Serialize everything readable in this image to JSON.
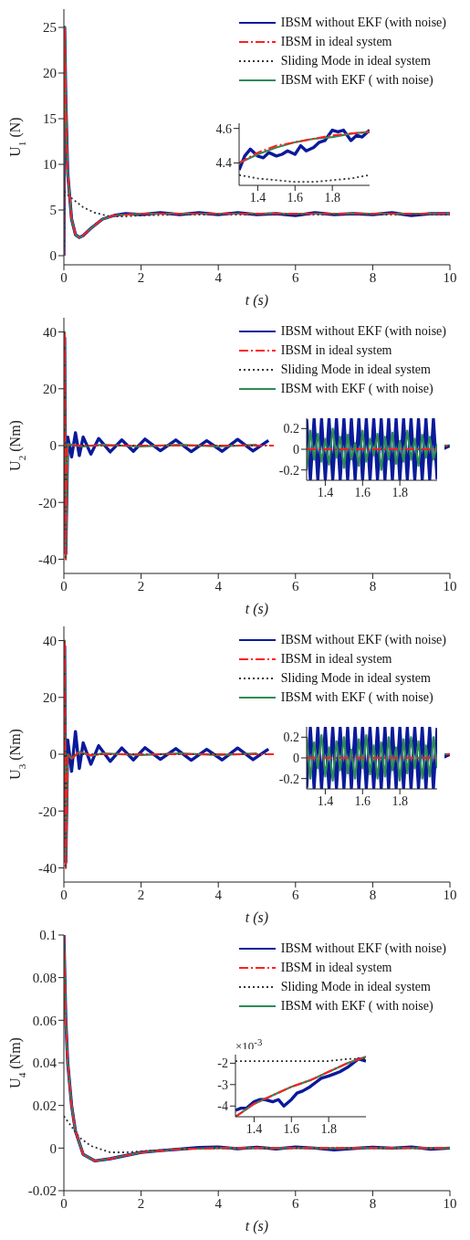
{
  "chart_data": [
    {
      "type": "line",
      "xlabel": "t (s)",
      "ylabel": "U$_{1}$ (N)",
      "xlim": [
        0,
        10
      ],
      "xticks": [
        0,
        2,
        4,
        6,
        8,
        10
      ],
      "ylim": [
        -1,
        27
      ],
      "yticks": [
        0,
        5,
        10,
        15,
        20,
        25
      ],
      "legend": "top right",
      "series": [
        {
          "name": "IBSM without EKF (with noise)",
          "color": "#0a1a9a",
          "line_style": "solid",
          "x": [
            0,
            0.02,
            0.05,
            0.1,
            0.2,
            0.3,
            0.4,
            0.5,
            0.7,
            1.0,
            1.3,
            1.6,
            2,
            2.5,
            3,
            3.5,
            4,
            4.5,
            5,
            5.5,
            6,
            6.5,
            7,
            7.5,
            8,
            8.5,
            9,
            9.5,
            10
          ],
          "values": [
            0,
            25,
            17,
            9,
            4,
            2.3,
            2,
            2.2,
            3,
            4,
            4.4,
            4.6,
            4.5,
            4.7,
            4.5,
            4.7,
            4.5,
            4.7,
            4.5,
            4.6,
            4.4,
            4.7,
            4.5,
            4.6,
            4.5,
            4.7,
            4.4,
            4.6,
            4.6
          ]
        },
        {
          "name": "IBSM in ideal system",
          "color": "#ff2020",
          "line_style": "dashed",
          "x": [
            0,
            0.02,
            0.05,
            0.1,
            0.2,
            0.3,
            0.4,
            0.5,
            0.7,
            1.0,
            1.3,
            1.6,
            2,
            3,
            4,
            6,
            8,
            10
          ],
          "values": [
            0,
            25,
            17,
            9,
            4,
            2.3,
            2,
            2.2,
            3,
            4,
            4.4,
            4.5,
            4.6,
            4.6,
            4.6,
            4.6,
            4.6,
            4.6
          ]
        },
        {
          "name": "Sliding Mode in ideal system",
          "color": "#333333",
          "line_style": "dotted",
          "x": [
            0,
            0.01,
            0.2,
            0.5,
            0.8,
            1.2,
            1.6,
            2,
            3,
            10
          ],
          "values": [
            0,
            7,
            6.3,
            5.3,
            4.7,
            4.3,
            4.3,
            4.4,
            4.5,
            4.5
          ]
        },
        {
          "name": "IBSM with EKF ( with noise)",
          "color": "#2e8b57",
          "line_style": "solid",
          "x": [
            0,
            0.02,
            0.05,
            0.1,
            0.2,
            0.3,
            0.4,
            0.5,
            0.7,
            1.0,
            1.3,
            1.6,
            2,
            3,
            4,
            6,
            8,
            10
          ],
          "values": [
            0,
            25,
            17,
            9,
            4,
            2.3,
            2,
            2.2,
            3,
            4,
            4.4,
            4.5,
            4.6,
            4.6,
            4.6,
            4.6,
            4.6,
            4.6
          ]
        }
      ]
    },
    {
      "type": "line",
      "xlim": [
        1.3,
        2.0
      ],
      "xticks": [
        1.4,
        1.6,
        1.8
      ],
      "ylim": [
        4.27,
        4.63
      ],
      "yticks": [
        4.4,
        4.6
      ],
      "series": [
        {
          "color": "#0a1a9a",
          "line_style": "solid",
          "x": [
            1.3,
            1.33,
            1.36,
            1.4,
            1.43,
            1.46,
            1.5,
            1.53,
            1.56,
            1.6,
            1.63,
            1.66,
            1.7,
            1.73,
            1.76,
            1.8,
            1.83,
            1.86,
            1.9,
            1.93,
            1.96,
            2.0
          ],
          "values": [
            4.36,
            4.44,
            4.48,
            4.44,
            4.43,
            4.46,
            4.44,
            4.45,
            4.47,
            4.45,
            4.5,
            4.47,
            4.49,
            4.52,
            4.53,
            4.59,
            4.58,
            4.59,
            4.53,
            4.56,
            4.55,
            4.59
          ]
        },
        {
          "color": "#ff2020",
          "line_style": "dashed",
          "x": [
            1.3,
            1.4,
            1.5,
            1.6,
            1.7,
            1.8,
            1.9,
            2.0
          ],
          "values": [
            4.4,
            4.46,
            4.5,
            4.52,
            4.54,
            4.56,
            4.57,
            4.58
          ]
        },
        {
          "color": "#333333",
          "line_style": "dotted",
          "x": [
            1.3,
            1.4,
            1.5,
            1.6,
            1.7,
            1.8,
            1.9,
            2.0
          ],
          "values": [
            4.33,
            4.31,
            4.3,
            4.29,
            4.29,
            4.3,
            4.31,
            4.33
          ]
        },
        {
          "color": "#2e8b57",
          "line_style": "solid",
          "x": [
            1.3,
            1.4,
            1.5,
            1.6,
            1.7,
            1.8,
            1.9,
            2.0
          ],
          "values": [
            4.4,
            4.45,
            4.49,
            4.52,
            4.54,
            4.55,
            4.57,
            4.58
          ]
        }
      ]
    },
    {
      "type": "line",
      "xlabel": "t (s)",
      "ylabel": "U$_{2}$ (Nm)",
      "xlim": [
        0,
        10
      ],
      "xticks": [
        0,
        2,
        4,
        6,
        8,
        10
      ],
      "ylim": [
        -45,
        45
      ],
      "yticks": [
        -40,
        -20,
        0,
        20,
        40
      ],
      "legend": "top right",
      "series": [
        {
          "name": "IBSM without EKF (with noise)",
          "color": "#0a1a9a",
          "line_style": "solid",
          "x": [
            0,
            0.02,
            0.05,
            0.1,
            0.2,
            0.3,
            0.4,
            0.5,
            0.7,
            0.9,
            1.2,
            1.5,
            1.8,
            2.1,
            2.5,
            2.9,
            3.3,
            3.7,
            4.1,
            4.5,
            4.9,
            5.3,
            5.7,
            6.1,
            6.5,
            6.9,
            7.3,
            7.7,
            8.1,
            8.5,
            8.9,
            9.3,
            9.7,
            10
          ],
          "values": [
            0,
            38,
            -38,
            3,
            -4,
            4.5,
            -3.5,
            3,
            -3,
            2.5,
            -2.2,
            2,
            -2,
            2.3,
            -1.8,
            2,
            -2.1,
            1.7,
            -2,
            2.2,
            -1.9,
            1.8,
            null,
            null,
            -1.7,
            2.1,
            -2,
            1.9,
            -2.2,
            1.8,
            -2,
            2,
            -1.9,
            0
          ]
        },
        {
          "name": "IBSM in ideal system",
          "color": "#ff2020",
          "line_style": "dashed",
          "x": [
            0,
            0.02,
            0.05,
            0.08,
            0.12,
            10
          ],
          "values": [
            0,
            40,
            -40,
            0,
            0,
            0
          ]
        },
        {
          "name": "Sliding Mode in ideal system",
          "color": "#333333",
          "line_style": "dotted",
          "x": [
            0,
            0.01,
            0.04,
            0.07,
            0.1,
            10
          ],
          "values": [
            0,
            40,
            -40,
            0,
            0,
            0
          ]
        },
        {
          "name": "IBSM with EKF ( with noise)",
          "color": "#2e8b57",
          "line_style": "solid",
          "x": [
            0,
            0.02,
            0.05,
            0.1,
            0.5,
            1,
            2,
            3,
            4,
            5,
            6,
            7,
            8,
            9,
            10
          ],
          "values": [
            0,
            40,
            -40,
            0.5,
            -0.3,
            0.3,
            -0.3,
            0.3,
            -0.3,
            0.3,
            null,
            0.3,
            -0.3,
            0.3,
            0
          ]
        }
      ]
    },
    {
      "type": "line",
      "xlim": [
        1.3,
        2.0
      ],
      "xticks": [
        1.4,
        1.6,
        1.8
      ],
      "ylim": [
        -0.3,
        0.3
      ],
      "yticks": [
        -0.2,
        0,
        0.2
      ],
      "series": [
        {
          "color": "#0a1a9a",
          "line_style": "solid",
          "x": [
            1.3,
            1.32,
            1.34,
            1.36,
            1.38,
            1.4,
            1.42,
            1.44,
            1.46,
            1.48,
            1.5,
            1.52,
            1.54,
            1.56,
            1.58,
            1.6,
            1.62,
            1.64,
            1.66,
            1.68,
            1.7,
            1.72,
            1.74,
            1.76,
            1.78,
            1.8,
            1.82,
            1.84,
            1.86,
            1.88,
            1.9,
            1.92,
            1.94,
            1.96,
            1.98,
            2.0
          ],
          "values": [
            0.29,
            -0.29,
            0.29,
            -0.29,
            0.29,
            -0.29,
            0.29,
            -0.29,
            0.29,
            -0.29,
            0.29,
            -0.29,
            0.29,
            -0.29,
            0.29,
            -0.29,
            0.29,
            -0.29,
            0.29,
            -0.29,
            0.29,
            -0.29,
            0.29,
            -0.29,
            0.29,
            -0.29,
            0.29,
            -0.29,
            0.29,
            -0.29,
            0.29,
            -0.29,
            0.29,
            -0.29,
            0.29,
            -0.29
          ]
        },
        {
          "color": "#2e8b57",
          "line_style": "solid",
          "x": [
            1.3,
            1.32,
            1.34,
            1.36,
            1.38,
            1.4,
            1.42,
            1.44,
            1.46,
            1.48,
            1.5,
            1.52,
            1.54,
            1.56,
            1.58,
            1.6,
            1.62,
            1.64,
            1.66,
            1.68,
            1.7,
            1.72,
            1.74,
            1.76,
            1.78,
            1.8,
            1.82,
            1.84,
            1.86,
            1.88,
            1.9,
            1.92,
            1.94,
            1.96,
            1.98,
            2.0
          ],
          "values": [
            -0.2,
            0.18,
            -0.1,
            0.15,
            -0.12,
            0.1,
            -0.15,
            0.2,
            -0.08,
            0.12,
            -0.18,
            0.14,
            -0.1,
            0.06,
            -0.16,
            0.18,
            -0.12,
            0.1,
            -0.06,
            0.15,
            -0.2,
            0.12,
            -0.1,
            0.16,
            -0.14,
            0.08,
            -0.12,
            0.18,
            -0.1,
            0.1,
            -0.16,
            0.14,
            -0.08,
            0.12,
            -0.1,
            0.05
          ]
        },
        {
          "color": "#ff2020",
          "line_style": "dashed",
          "x": [
            1.3,
            2.0
          ],
          "values": [
            0,
            0
          ]
        }
      ]
    },
    {
      "type": "line",
      "xlabel": "t (s)",
      "ylabel": "U$_{3}$ (Nm)",
      "xlim": [
        0,
        10
      ],
      "xticks": [
        0,
        2,
        4,
        6,
        8,
        10
      ],
      "ylim": [
        -45,
        45
      ],
      "yticks": [
        -40,
        -20,
        0,
        20,
        40
      ],
      "legend": "top right",
      "series": [
        {
          "name": "IBSM without EKF (with noise)",
          "color": "#0a1a9a",
          "line_style": "solid",
          "x": [
            0,
            0.02,
            0.05,
            0.1,
            0.2,
            0.3,
            0.4,
            0.5,
            0.7,
            0.9,
            1.2,
            1.5,
            1.8,
            2.1,
            2.5,
            2.9,
            3.3,
            3.7,
            4.1,
            4.5,
            4.9,
            5.3,
            5.7,
            6.1,
            6.5,
            6.9,
            7.3,
            7.7,
            8.1,
            8.5,
            8.9,
            9.3,
            9.7,
            10
          ],
          "values": [
            0,
            38,
            -38,
            5,
            -6,
            8,
            -5,
            4,
            -3.5,
            3,
            -2.5,
            2.2,
            -2,
            2.3,
            -1.8,
            2,
            -2.1,
            1.7,
            -2,
            2.2,
            -1.9,
            1.8,
            null,
            null,
            -1.7,
            2.1,
            -2,
            1.9,
            -2.2,
            1.8,
            -2,
            2,
            -1.9,
            0
          ]
        },
        {
          "name": "IBSM in ideal system",
          "color": "#ff2020",
          "line_style": "dashed",
          "x": [
            0,
            0.02,
            0.05,
            0.1,
            0.2,
            0.4,
            0.7,
            1,
            10
          ],
          "values": [
            0,
            40,
            -40,
            0,
            -1.5,
            0.8,
            -0.3,
            0,
            0
          ]
        },
        {
          "name": "Sliding Mode in ideal system",
          "color": "#333333",
          "line_style": "dotted",
          "x": [
            0,
            0.01,
            0.04,
            0.07,
            0.1,
            10
          ],
          "values": [
            0,
            40,
            -40,
            0,
            0,
            0
          ]
        },
        {
          "name": "IBSM with EKF ( with noise)",
          "color": "#2e8b57",
          "line_style": "solid",
          "x": [
            0,
            0.02,
            0.05,
            0.1,
            0.2,
            0.4,
            0.7,
            1,
            2,
            3,
            4,
            5,
            6,
            7,
            8,
            9,
            10
          ],
          "values": [
            0,
            40,
            -40,
            0,
            -1.5,
            0.8,
            -0.5,
            0.3,
            -0.3,
            0.3,
            -0.3,
            0.3,
            null,
            0.3,
            -0.3,
            0.3,
            0
          ]
        }
      ]
    },
    {
      "type": "line",
      "xlim": [
        1.3,
        2.0
      ],
      "xticks": [
        1.4,
        1.6,
        1.8
      ],
      "ylim": [
        -0.3,
        0.3
      ],
      "yticks": [
        -0.2,
        0,
        0.2
      ],
      "series": [
        {
          "color": "#0a1a9a",
          "line_style": "solid",
          "x": [
            1.3,
            1.32,
            1.34,
            1.36,
            1.38,
            1.4,
            1.42,
            1.44,
            1.46,
            1.48,
            1.5,
            1.52,
            1.54,
            1.56,
            1.58,
            1.6,
            1.62,
            1.64,
            1.66,
            1.68,
            1.7,
            1.72,
            1.74,
            1.76,
            1.78,
            1.8,
            1.82,
            1.84,
            1.86,
            1.88,
            1.9,
            1.92,
            1.94,
            1.96,
            1.98,
            2.0
          ],
          "values": [
            -0.29,
            0.29,
            -0.29,
            0.29,
            -0.29,
            0.29,
            -0.29,
            0.29,
            -0.29,
            0.29,
            -0.29,
            0.29,
            -0.29,
            0.29,
            -0.29,
            0.29,
            -0.29,
            0.29,
            -0.29,
            0.29,
            -0.29,
            0.29,
            -0.29,
            0.29,
            -0.29,
            0.29,
            -0.29,
            0.29,
            -0.29,
            0.29,
            -0.29,
            0.29,
            -0.29,
            0.29,
            -0.29,
            0.29
          ]
        },
        {
          "color": "#2e8b57",
          "line_style": "solid",
          "x": [
            1.3,
            1.32,
            1.34,
            1.36,
            1.38,
            1.4,
            1.42,
            1.44,
            1.46,
            1.48,
            1.5,
            1.52,
            1.54,
            1.56,
            1.58,
            1.6,
            1.62,
            1.64,
            1.66,
            1.68,
            1.7,
            1.72,
            1.74,
            1.76,
            1.78,
            1.8,
            1.82,
            1.84,
            1.86,
            1.88,
            1.9,
            1.92,
            1.94,
            1.96,
            1.98,
            2.0
          ],
          "values": [
            0.2,
            -0.2,
            0.15,
            -0.1,
            0.22,
            -0.18,
            0.1,
            -0.22,
            0.16,
            -0.12,
            0.2,
            -0.15,
            0.08,
            -0.2,
            0.18,
            -0.1,
            0.22,
            -0.16,
            0.12,
            -0.2,
            0.15,
            -0.18,
            0.2,
            -0.12,
            0.1,
            -0.22,
            0.18,
            -0.15,
            0.2,
            -0.1,
            0.16,
            -0.2,
            0.12,
            -0.18,
            0.2,
            -0.1
          ]
        },
        {
          "color": "#ff2020",
          "line_style": "dashed",
          "x": [
            1.3,
            2.0
          ],
          "values": [
            0,
            0
          ]
        }
      ]
    },
    {
      "type": "line",
      "xlabel": "t (s)",
      "ylabel": "U$_{4}$ (Nm)",
      "xlim": [
        0,
        10
      ],
      "xticks": [
        0,
        2,
        4,
        6,
        8,
        10
      ],
      "ylim": [
        -0.02,
        0.1
      ],
      "yticks": [
        -0.02,
        0,
        0.02,
        0.04,
        0.06,
        0.08,
        0.1
      ],
      "legend": "top right",
      "series": [
        {
          "name": "IBSM without EKF (with noise)",
          "color": "#0a1a9a",
          "line_style": "solid",
          "x": [
            0,
            0.05,
            0.1,
            0.2,
            0.3,
            0.5,
            0.8,
            1.2,
            2,
            2.5,
            3,
            3.5,
            4,
            4.5,
            5,
            5.5,
            6,
            6.5,
            7,
            7.5,
            8,
            8.5,
            9,
            9.5,
            10
          ],
          "values": [
            0.1,
            0.06,
            0.04,
            0.02,
            0.008,
            -0.003,
            -0.006,
            -0.005,
            -0.002,
            -0.0012,
            -0.0005,
            0.0003,
            0.0005,
            -0.0003,
            0.0004,
            -0.0004,
            0.0005,
            0,
            -0.0008,
            -0.0002,
            0.0004,
            0,
            0.0005,
            -0.0005,
            0
          ]
        },
        {
          "name": "IBSM in ideal system",
          "color": "#ff2020",
          "line_style": "dashed",
          "x": [
            0,
            0.05,
            0.1,
            0.2,
            0.3,
            0.5,
            0.8,
            1.2,
            2,
            3,
            4,
            10
          ],
          "values": [
            0.1,
            0.06,
            0.04,
            0.02,
            0.008,
            -0.003,
            -0.006,
            -0.005,
            -0.002,
            -0.0005,
            0,
            0
          ]
        },
        {
          "name": "Sliding Mode in ideal system",
          "color": "#333333",
          "line_style": "dotted",
          "x": [
            0,
            0.2,
            0.4,
            0.7,
            1.2,
            1.6,
            2,
            3,
            4,
            10
          ],
          "values": [
            0.015,
            0.01,
            0.005,
            0.001,
            -0.002,
            -0.002,
            -0.0015,
            -0.0005,
            0,
            0
          ]
        },
        {
          "name": "IBSM with EKF ( with noise)",
          "color": "#2e8b57",
          "line_style": "solid",
          "x": [
            0,
            0.05,
            0.1,
            0.2,
            0.3,
            0.5,
            0.8,
            1.2,
            2,
            3,
            4,
            10
          ],
          "values": [
            0.1,
            0.06,
            0.04,
            0.02,
            0.008,
            -0.003,
            -0.006,
            -0.005,
            -0.002,
            -0.0005,
            0,
            0
          ]
        }
      ]
    },
    {
      "type": "line",
      "xlim": [
        1.3,
        2.0
      ],
      "xticks": [
        1.4,
        1.6,
        1.8
      ],
      "ylim": [
        -4.5,
        -1.6
      ],
      "yticks": [
        -4,
        -3,
        -2
      ],
      "annotations": [
        "×10$^{-3}$"
      ],
      "series": [
        {
          "color": "#0a1a9a",
          "line_style": "solid",
          "x": [
            1.3,
            1.33,
            1.36,
            1.4,
            1.43,
            1.46,
            1.5,
            1.53,
            1.56,
            1.6,
            1.63,
            1.66,
            1.7,
            1.73,
            1.76,
            1.8,
            1.83,
            1.86,
            1.9,
            1.93,
            1.96,
            2.0
          ],
          "values": [
            -4.2,
            -4.1,
            -4.1,
            -3.8,
            -3.7,
            -3.7,
            -3.8,
            -3.7,
            -4.0,
            -3.7,
            -3.4,
            -3.3,
            -3.1,
            -2.9,
            -2.7,
            -2.6,
            -2.5,
            -2.4,
            -2.2,
            -2.0,
            -1.8,
            -1.9
          ]
        },
        {
          "color": "#ff2020",
          "line_style": "dashed",
          "x": [
            1.3,
            1.4,
            1.5,
            1.6,
            1.7,
            1.8,
            1.9,
            2.0
          ],
          "values": [
            -4.5,
            -3.9,
            -3.5,
            -3.1,
            -2.8,
            -2.4,
            -2.0,
            -1.7
          ]
        },
        {
          "color": "#333333",
          "line_style": "dotted",
          "x": [
            1.3,
            1.4,
            1.5,
            1.6,
            1.7,
            1.8,
            1.9,
            2.0
          ],
          "values": [
            -1.9,
            -1.9,
            -1.9,
            -1.9,
            -1.9,
            -1.9,
            -1.8,
            -1.8
          ]
        },
        {
          "color": "#2e8b57",
          "line_style": "solid",
          "x": [
            1.3,
            1.4,
            1.5,
            1.6,
            1.7,
            1.8,
            1.9,
            2.0
          ],
          "values": [
            -4.5,
            -3.9,
            -3.5,
            -3.1,
            -2.8,
            -2.4,
            -2.0,
            -1.7
          ]
        }
      ]
    }
  ]
}
